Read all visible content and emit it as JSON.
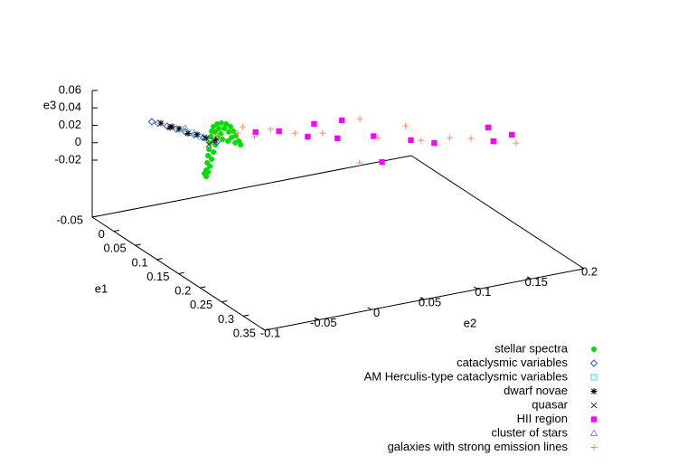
{
  "chart_data": {
    "type": "scatter3d",
    "xlabel": "e1",
    "ylabel": "e2",
    "zlabel": "e3",
    "xlim": [
      -0.05,
      0.35
    ],
    "xticks": [
      -0.05,
      0,
      0.05,
      0.1,
      0.15,
      0.2,
      0.25,
      0.3,
      0.35
    ],
    "ylim": [
      -0.1,
      0.2
    ],
    "yticks": [
      -0.1,
      -0.05,
      0,
      0.05,
      0.1,
      0.15,
      0.2
    ],
    "zlim": [
      -0.02,
      0.06
    ],
    "zticks": [
      -0.02,
      0,
      0.02,
      0.04,
      0.06
    ],
    "legend": "bottom-right",
    "series": [
      {
        "name": "stellar spectra",
        "color": "#00dd00",
        "marker": "circle",
        "x": [
          0.1,
          0.1,
          0.1,
          0.1,
          0.1,
          0.1,
          0.1,
          0.1,
          0.1,
          0.1,
          0.1,
          0.1,
          0.1,
          0.1,
          0.1,
          0.1,
          0.1,
          0.1,
          0.1,
          0.1,
          0.1,
          0.1,
          0.1,
          0.1,
          0.1,
          0.1,
          0.1,
          0.1,
          0.1,
          0.1,
          0.1,
          0.1,
          0.1
        ],
        "y": [
          -0.0537,
          -0.0537,
          -0.0528,
          -0.052,
          -0.0511,
          -0.0503,
          -0.0494,
          -0.0486,
          -0.0469,
          -0.0435,
          -0.0393,
          -0.035,
          -0.0308,
          -0.0282,
          -0.0257,
          -0.0231,
          -0.0214,
          -0.0418,
          -0.0367,
          -0.0325,
          -0.0299,
          -0.0265,
          -0.052,
          -0.0503,
          -0.0486,
          -0.0469,
          -0.0452,
          -0.0435,
          -0.0401,
          -0.0554,
          -0.0452,
          -0.0384,
          -0.0333
        ],
        "z": [
          -0.0009,
          0.0064,
          0.0145,
          0.0226,
          0.0297,
          0.0368,
          0.0439,
          0.0499,
          0.0547,
          0.057,
          0.057,
          0.055,
          0.0509,
          0.0451,
          0.0393,
          0.0325,
          0.0279,
          0.0514,
          0.0502,
          0.0451,
          0.0382,
          0.0312,
          0.0039,
          0.0098,
          0.0177,
          0.0256,
          0.0335,
          0.0414,
          0.0448,
          0.0027,
          0.0481,
          0.0381,
          0.0349
        ]
      },
      {
        "name": "cataclysmic variables",
        "color": "#3050e0",
        "marker": "diamond",
        "x": [
          0,
          0,
          0,
          0,
          0,
          0,
          0,
          0
        ],
        "y": [
          -0.0643,
          -0.0583,
          -0.0499,
          -0.0413,
          -0.0328,
          -0.0243,
          -0.0157,
          -0.0031
        ],
        "z": [
          0.032,
          0.0288,
          0.0235,
          0.0182,
          0.0129,
          0.0076,
          0.0023,
          -0.0057
        ]
      },
      {
        "name": "AM Herculis-type cataclysmic variables",
        "color": "#30d8e8",
        "marker": "square",
        "x": [
          0,
          0,
          0
        ],
        "y": [
          -0.037,
          -0.0268,
          -0.0183
        ],
        "z": [
          0.0167,
          0.0104,
          0.0041
        ]
      },
      {
        "name": "dwarf novae",
        "color": "#000000",
        "marker": "star",
        "x": [
          0,
          0,
          0,
          0,
          0,
          0,
          0,
          0
        ],
        "y": [
          -0.0557,
          -0.0472,
          -0.0387,
          -0.0302,
          -0.0217,
          -0.0132,
          -0.0047,
          -0.0455
        ],
        "z": [
          0.0283,
          0.0211,
          0.0178,
          0.0105,
          0.0072,
          0.0009,
          -0.0034,
          0.022
        ]
      },
      {
        "name": "quasar",
        "color": "#404040",
        "marker": "x",
        "x": [
          0,
          0,
          0
        ],
        "y": [
          -0.0106,
          -0.0064,
          -0.0149
        ],
        "z": [
          -0.0069,
          -0.0033,
          0.002
        ]
      },
      {
        "name": "HII region",
        "color": "#ff00ff",
        "marker": "square-filled",
        "x": [
          0.05,
          0.05,
          0.05,
          0.05,
          0.05,
          0.05,
          0.05,
          0.15,
          0.15,
          0.2,
          0.2,
          0.05,
          0.05
        ],
        "y": [
          0.013,
          0.035,
          0.068,
          0.094,
          0.124,
          0.159,
          0.181,
          0.191,
          0.196,
          0.193,
          0.071,
          0.062,
          0.09
        ],
        "z": [
          0.018,
          0.0139,
          0.0145,
          0.0125,
          -0.0127,
          -0.0256,
          -0.034,
          0.0138,
          -0.003,
          0.0213,
          0.0188,
          0.0013,
          -0.0072
        ]
      },
      {
        "name": "cluster of stars",
        "color": "#9090c8",
        "marker": "triangle",
        "x": [
          0
        ],
        "y": [
          -0.0328
        ],
        "z": [
          0.017
        ]
      },
      {
        "name": "galaxies with strong emission lines",
        "color": "#ff8c5a",
        "marker": "plus",
        "x": [
          0.05,
          0.05,
          0.05,
          0.05,
          0.05,
          0.05,
          0.05,
          0.05,
          0.15,
          0.15,
          0.15,
          0.2,
          0.2,
          0.05,
          0.05
        ],
        "y": [
          0.001,
          0.012,
          0.027,
          0.05,
          0.076,
          0.111,
          0.128,
          0.154,
          0.128,
          0.155,
          0.175,
          0.197,
          0.05,
          -0.023,
          -0.004
        ],
        "z": [
          0.027,
          0.013,
          0.018,
          0.008,
          0.002,
          0.0105,
          -0.0157,
          -0.008,
          0.014,
          0.0106,
          0.005,
          0.0109,
          0.0227,
          0.0226,
          0.021
        ]
      }
    ]
  }
}
